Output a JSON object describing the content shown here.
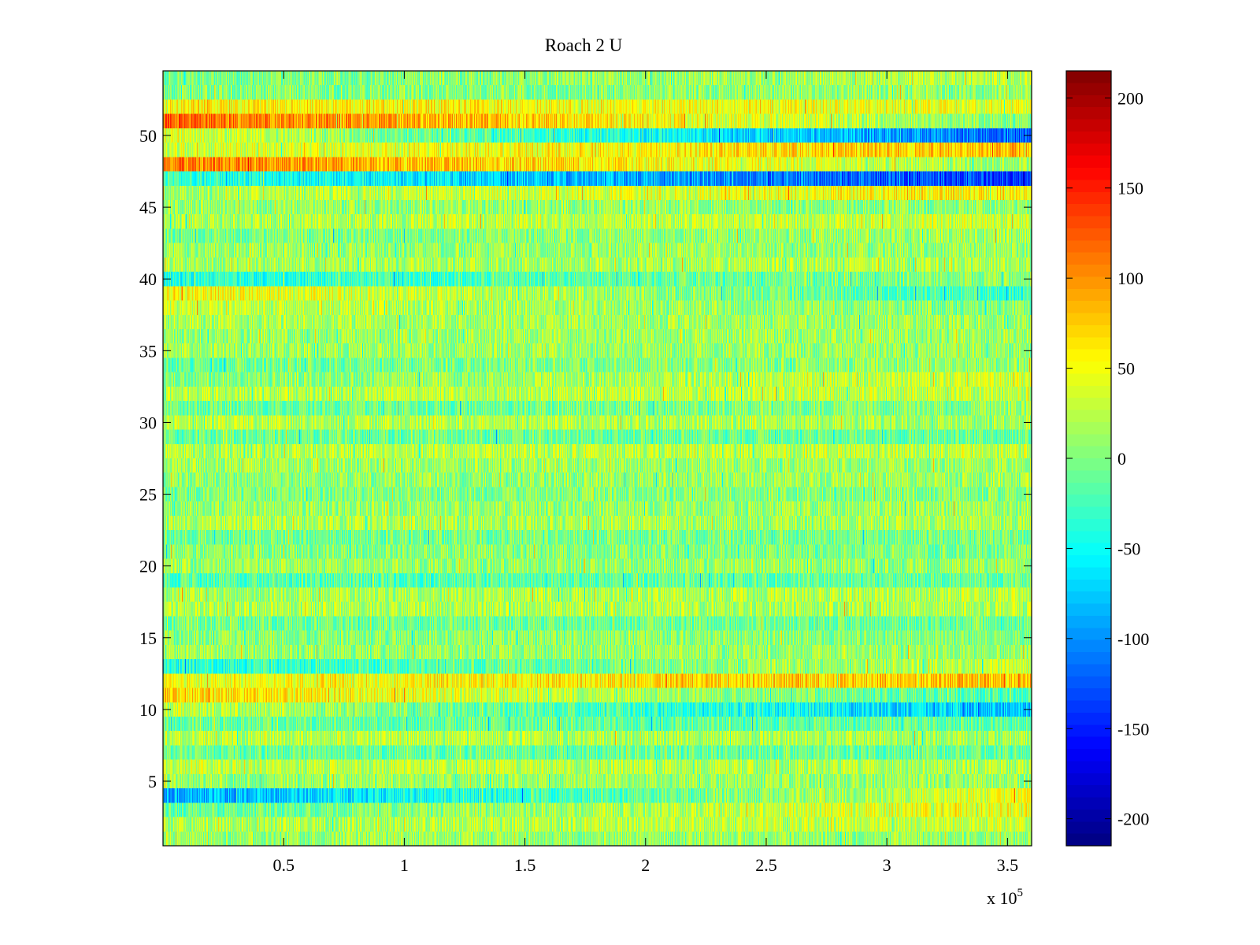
{
  "chart_data": {
    "type": "heatmap",
    "title": "Roach 2 U",
    "xlabel": "",
    "ylabel": "",
    "x_multiplier_label": "x 10",
    "x_multiplier_exponent": "5",
    "xlim": [
      0,
      3.6
    ],
    "ylim": [
      0.5,
      54.5
    ],
    "x_ticks": [
      0.5,
      1,
      1.5,
      2,
      2.5,
      3,
      3.5
    ],
    "x_tick_labels": [
      "0.5",
      "1",
      "1.5",
      "2",
      "2.5",
      "3",
      "3.5"
    ],
    "y_ticks": [
      5,
      10,
      15,
      20,
      25,
      30,
      35,
      40,
      45,
      50
    ],
    "y_tick_labels": [
      "5",
      "10",
      "15",
      "20",
      "25",
      "30",
      "35",
      "40",
      "45",
      "50"
    ],
    "rows": 54,
    "colorbar": {
      "colormap": "jet",
      "clim": [
        -215,
        215
      ],
      "ticks": [
        -200,
        -150,
        -100,
        -50,
        0,
        50,
        100,
        150,
        200
      ],
      "tick_labels": [
        "-200",
        "-150",
        "-100",
        "-50",
        "0",
        "50",
        "100",
        "150",
        "200"
      ]
    },
    "row_mean_start": [
      10,
      20,
      -15,
      -90,
      10,
      30,
      -10,
      25,
      -10,
      30,
      70,
      45,
      -40,
      10,
      5,
      -5,
      20,
      15,
      -20,
      10,
      5,
      -5,
      20,
      10,
      0,
      5,
      15,
      20,
      -10,
      25,
      -10,
      20,
      0,
      -10,
      15,
      10,
      20,
      30,
      55,
      -40,
      15,
      10,
      -5,
      20,
      10,
      15,
      -30,
      110,
      30,
      40,
      120,
      60,
      0,
      -5
    ],
    "row_mean_end": [
      10,
      30,
      50,
      45,
      10,
      20,
      -10,
      15,
      -15,
      -80,
      -25,
      80,
      30,
      10,
      5,
      -10,
      20,
      25,
      -10,
      10,
      0,
      -5,
      15,
      10,
      5,
      15,
      10,
      30,
      -10,
      15,
      5,
      30,
      35,
      10,
      10,
      15,
      10,
      0,
      -30,
      5,
      20,
      10,
      15,
      30,
      5,
      60,
      -140,
      10,
      80,
      -120,
      0,
      40,
      10,
      25
    ],
    "noise_amplitude": 35
  }
}
